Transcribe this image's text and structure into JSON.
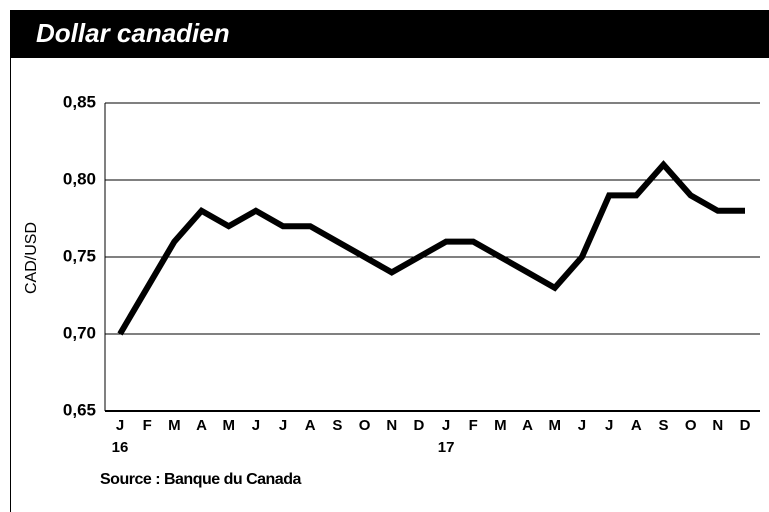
{
  "chart_data": {
    "type": "line",
    "title": "Dollar canadien",
    "y_label": "CAD/USD",
    "source": "Source : Banque du Canada",
    "categories": [
      "J",
      "F",
      "M",
      "A",
      "M",
      "J",
      "J",
      "A",
      "S",
      "O",
      "N",
      "D",
      "J",
      "F",
      "M",
      "A",
      "M",
      "J",
      "J",
      "A",
      "S",
      "O",
      "N",
      "D"
    ],
    "year_labels": [
      "16",
      null,
      null,
      null,
      null,
      null,
      null,
      null,
      null,
      null,
      null,
      null,
      "17",
      null,
      null,
      null,
      null,
      null,
      null,
      null,
      null,
      null,
      null,
      null
    ],
    "series": [
      {
        "name": "CAD/USD",
        "color": "#000000",
        "values": [
          0.7,
          0.73,
          0.76,
          0.78,
          0.77,
          0.78,
          0.77,
          0.77,
          0.76,
          0.75,
          0.74,
          0.75,
          0.76,
          0.76,
          0.75,
          0.74,
          0.73,
          0.75,
          0.79,
          0.79,
          0.81,
          0.79,
          0.78,
          0.78
        ]
      }
    ],
    "ylim": [
      0.65,
      0.85
    ],
    "yticks": [
      {
        "value": 0.65,
        "label": "0,65"
      },
      {
        "value": 0.7,
        "label": "0,70"
      },
      {
        "value": 0.75,
        "label": "0,75"
      },
      {
        "value": 0.8,
        "label": "0,80"
      },
      {
        "value": 0.85,
        "label": "0,85"
      }
    ],
    "grid": true
  }
}
